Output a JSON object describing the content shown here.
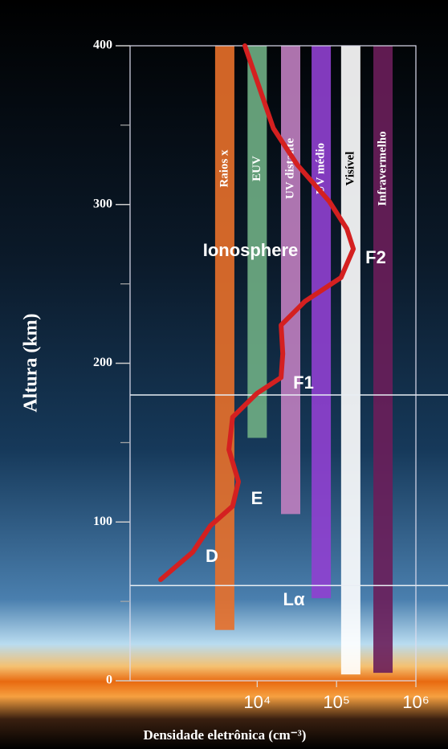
{
  "chart_data": {
    "type": "line",
    "ylabel": "Altura (km)",
    "xlabel": "Densidade eletrônica (cm⁻³)",
    "xscale": "log",
    "xlim": [
      250,
      1000000
    ],
    "ylim": [
      0,
      400
    ],
    "xticks": [
      {
        "value": 10000,
        "label": "10⁴"
      },
      {
        "value": 100000,
        "label": "10⁵"
      },
      {
        "value": 1000000,
        "label": "10⁶"
      }
    ],
    "yticks": [
      0,
      100,
      200,
      300,
      400
    ],
    "minor_yticks": [
      50,
      150,
      250,
      350
    ],
    "hlines": [
      180,
      60
    ],
    "curve": {
      "color": "#d42020",
      "x": [
        607,
        1540,
        2570,
        4900,
        5800,
        4400,
        4900,
        9900,
        20000,
        21000,
        20000,
        40000,
        114000,
        163000,
        135000,
        81000,
        32000,
        16000,
        7000
      ],
      "y": [
        63.7,
        81,
        97.6,
        110,
        125.4,
        145.6,
        166,
        181,
        191,
        206,
        224,
        239,
        254,
        272,
        284.7,
        302,
        325,
        348,
        400
      ]
    },
    "bands": [
      {
        "name": "Raios x",
        "color": "#e8702a",
        "text_color": "#ffffff",
        "x": 3900,
        "bottom": 32
      },
      {
        "name": "EUV",
        "color": "#6fae84",
        "text_color": "#ffffff",
        "x": 10000,
        "bottom": 153
      },
      {
        "name": "UV distante",
        "color": "#c080c0",
        "text_color": "#ffffff",
        "x": 26400,
        "bottom": 105
      },
      {
        "name": "UV médio",
        "color": "#9040d0",
        "text_color": "#ffffff",
        "x": 64100,
        "bottom": 52
      },
      {
        "name": "Visível",
        "color": "#ffffff",
        "text_color": "#000000",
        "x": 151000,
        "bottom": 4
      },
      {
        "name": "Infravermelho",
        "color": "#6a1e5a",
        "text_color": "#ffffff",
        "x": 385000,
        "bottom": 5
      }
    ],
    "annotations": [
      "Ionosphere",
      "F2",
      "F1",
      "E",
      "D",
      "Lα"
    ]
  }
}
